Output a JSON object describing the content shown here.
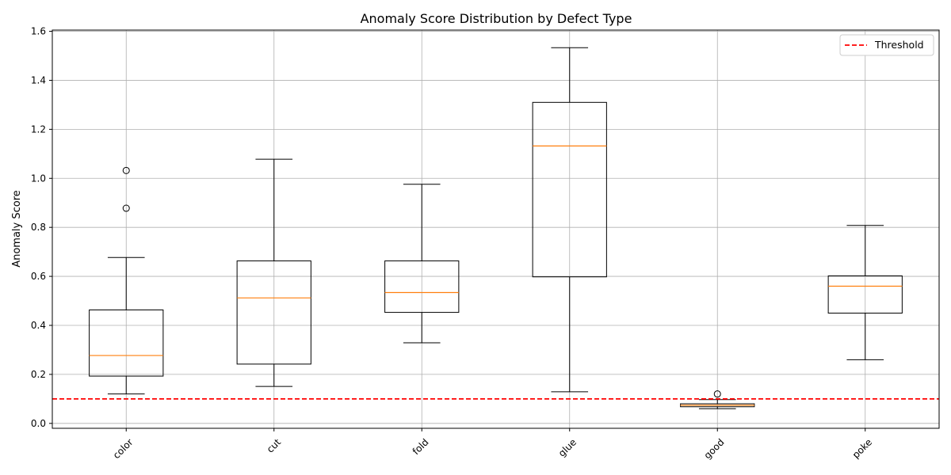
{
  "chart_data": {
    "type": "box",
    "title": "Anomaly Score Distribution by Defect Type",
    "xlabel": "",
    "ylabel": "Anomaly Score",
    "ylim": [
      -0.02,
      1.605
    ],
    "yticks": [
      0.0,
      0.2,
      0.4,
      0.6,
      0.8,
      1.0,
      1.2,
      1.4,
      1.6
    ],
    "ytick_labels": [
      "0.0",
      "0.2",
      "0.4",
      "0.6",
      "0.8",
      "1.0",
      "1.2",
      "1.4",
      "1.6"
    ],
    "grid": true,
    "legend_position": "top-right",
    "categories": [
      "color",
      "cut",
      "fold",
      "glue",
      "good",
      "poke"
    ],
    "boxes": [
      {
        "category": "color",
        "whisker_low": 0.12,
        "q1": 0.193,
        "median": 0.277,
        "q3": 0.463,
        "whisker_high": 0.677,
        "outliers": [
          0.878,
          1.032
        ]
      },
      {
        "category": "cut",
        "whisker_low": 0.151,
        "q1": 0.242,
        "median": 0.512,
        "q3": 0.663,
        "whisker_high": 1.078,
        "outliers": []
      },
      {
        "category": "fold",
        "whisker_low": 0.329,
        "q1": 0.453,
        "median": 0.534,
        "q3": 0.663,
        "whisker_high": 0.976,
        "outliers": []
      },
      {
        "category": "glue",
        "whisker_low": 0.129,
        "q1": 0.598,
        "median": 1.132,
        "q3": 1.31,
        "whisker_high": 1.533,
        "outliers": []
      },
      {
        "category": "good",
        "whisker_low": 0.06,
        "q1": 0.068,
        "median": 0.074,
        "q3": 0.08,
        "whisker_high": 0.097,
        "outliers": [
          0.12
        ]
      },
      {
        "category": "poke",
        "whisker_low": 0.26,
        "q1": 0.45,
        "median": 0.56,
        "q3": 0.602,
        "whisker_high": 0.808,
        "outliers": []
      }
    ],
    "threshold": {
      "name": "Threshold",
      "value": 0.1,
      "style": "dashed"
    },
    "colors": {
      "box": "#000000",
      "median": "#ff7f0e",
      "threshold": "#ff0000",
      "grid": "#b0b0b0"
    }
  }
}
